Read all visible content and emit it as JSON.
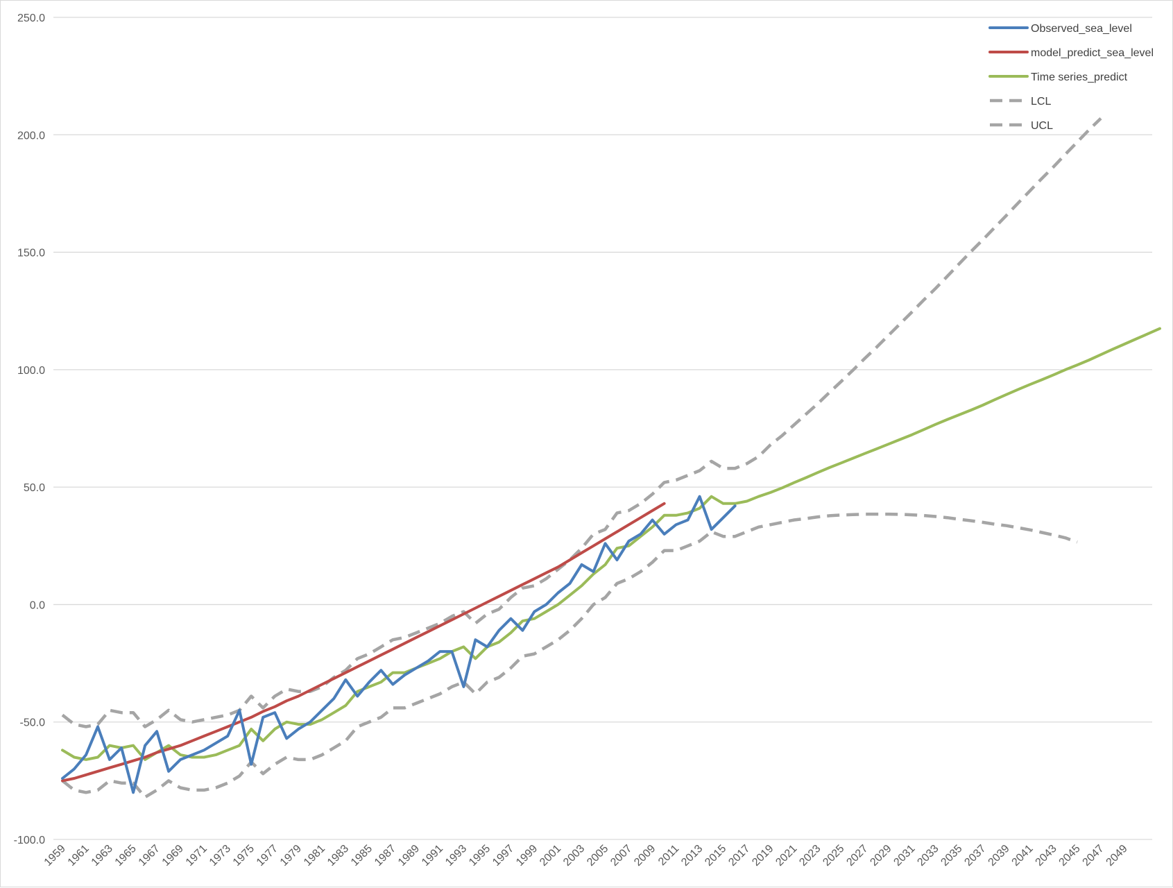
{
  "chart_data": {
    "type": "line",
    "title": "",
    "xlabel": "",
    "ylabel": "",
    "ylim": [
      -100,
      250
    ],
    "yticks": [
      "250.0",
      "200.0",
      "150.0",
      "100.0",
      "50.0",
      "0.0",
      "-50.0",
      "-100.0"
    ],
    "x_start": 1959,
    "x_end": 2051,
    "xtick_labels": [
      "1959",
      "1961",
      "1963",
      "1965",
      "1967",
      "1969",
      "1971",
      "1973",
      "1975",
      "1977",
      "1979",
      "1981",
      "1983",
      "1985",
      "1987",
      "1989",
      "1991",
      "1993",
      "1995",
      "1997",
      "1999",
      "2001",
      "2003",
      "2005",
      "2007",
      "2009",
      "2011",
      "2013",
      "2015",
      "2017",
      "2019",
      "2021",
      "2023",
      "2025",
      "2027",
      "2029",
      "2031",
      "2033",
      "2035",
      "2037",
      "2039",
      "2041",
      "2043",
      "2045",
      "2047",
      "2049"
    ],
    "grid": "horizontal",
    "legend_position": "top-right",
    "series": [
      {
        "name": "Observed_sea_level",
        "color": "#4a7ebb",
        "dashed": false,
        "start_year": 1959,
        "values": [
          -74,
          -70,
          -64,
          -52,
          -66,
          -61,
          -80,
          -60,
          -54,
          -71,
          -66,
          -64,
          -62,
          -59,
          -56,
          -45,
          -68,
          -48,
          -46,
          -57,
          -53,
          -50,
          -45,
          -40,
          -32,
          -39,
          -33,
          -28,
          -34,
          -30,
          -27,
          -24,
          -20,
          -20,
          -35,
          -15,
          -18,
          -11,
          -6,
          -11,
          -3,
          0,
          5,
          9,
          17,
          14,
          26,
          19,
          27,
          30,
          36,
          30,
          34,
          36,
          46,
          32,
          37,
          42
        ]
      },
      {
        "name": "model_predict_sea_level",
        "color": "#be4b48",
        "dashed": false,
        "start_year": 1959,
        "values": [
          -75,
          -74,
          -72.5,
          -71,
          -69.5,
          -68,
          -66.5,
          -65,
          -63,
          -61.5,
          -60,
          -58,
          -56,
          -54,
          -52,
          -50,
          -48,
          -45.5,
          -43.5,
          -41,
          -39,
          -36.5,
          -34,
          -31.5,
          -29,
          -26.5,
          -24,
          -21.5,
          -19,
          -16.5,
          -14,
          -11.5,
          -9,
          -6.5,
          -4,
          -1.5,
          1,
          3.5,
          6,
          8.5,
          11,
          13.5,
          16,
          19,
          22,
          25,
          28,
          31,
          34,
          37,
          40,
          43
        ]
      },
      {
        "name": "Time series_predict",
        "color": "#9bbb59",
        "dashed": false,
        "start_year": 1959,
        "values": [
          -62,
          -65,
          -66,
          -65,
          -60,
          -61,
          -60,
          -66,
          -63,
          -60,
          -64,
          -65,
          -65,
          -64,
          -62,
          -60,
          -53,
          -58,
          -53,
          -50,
          -51,
          -51,
          -49,
          -46,
          -43,
          -37,
          -35,
          -33,
          -29,
          -29,
          -27,
          -25,
          -23,
          -20,
          -18,
          -23,
          -18,
          -16,
          -12,
          -7,
          -6,
          -3,
          0,
          4,
          8,
          13,
          17,
          24,
          25,
          29,
          33,
          38,
          38,
          39,
          41,
          46,
          43,
          43,
          44,
          46,
          47.7,
          49.7,
          51.9,
          54,
          56.2,
          58.3,
          60.3,
          62.3,
          64.3,
          66.3,
          68.3,
          70.3,
          72.3,
          74.5,
          76.7,
          78.8,
          80.8,
          82.8,
          84.9,
          87.2,
          89.4,
          91.6,
          93.7,
          95.7,
          97.8,
          100,
          102,
          104.1,
          106.4,
          108.7,
          110.9,
          113.1,
          115.3,
          117.5
        ]
      },
      {
        "name": "LCL",
        "color": "#a5a5a5",
        "dashed": true,
        "start_year": 1959,
        "values": [
          -75,
          -79,
          -80,
          -79,
          -75,
          -76,
          -76,
          -82,
          -79,
          -75,
          -78,
          -79,
          -79,
          -78,
          -76,
          -73,
          -67,
          -72,
          -68,
          -65,
          -66,
          -66,
          -64,
          -61,
          -58,
          -52,
          -50,
          -48,
          -44,
          -44,
          -42,
          -40,
          -38,
          -35,
          -33,
          -38,
          -33,
          -31,
          -27,
          -22,
          -21,
          -18,
          -15,
          -11,
          -6,
          0,
          3,
          9,
          11,
          14,
          18,
          23,
          23,
          25,
          27,
          31,
          29,
          29,
          31,
          33,
          34,
          35,
          36,
          36.6,
          37.3,
          37.8,
          38.1,
          38.3,
          38.5,
          38.5,
          38.5,
          38.4,
          38.2,
          37.9,
          37.5,
          37,
          36.3,
          35.7,
          35,
          34.2,
          33.6,
          32.7,
          31.8,
          30.7,
          29.6,
          28.4,
          26.6
        ]
      },
      {
        "name": "UCL",
        "color": "#a5a5a5",
        "dashed": true,
        "start_year": 1959,
        "values": [
          -47,
          -51,
          -52,
          -51,
          -45,
          -46,
          -46,
          -52,
          -49,
          -45,
          -49,
          -50,
          -49,
          -48,
          -47,
          -45,
          -39,
          -44,
          -39,
          -36,
          -37,
          -37,
          -35,
          -31,
          -28,
          -23,
          -21,
          -18,
          -15,
          -14,
          -12,
          -10,
          -8,
          -5,
          -3,
          -8,
          -4,
          -2,
          3,
          7,
          8,
          11,
          15,
          19,
          24,
          30,
          32,
          39,
          40,
          43,
          47,
          52,
          53,
          55,
          57,
          61,
          58,
          58,
          60,
          63,
          68,
          72,
          76.5,
          81,
          85.5,
          90.3,
          95,
          99.8,
          104.8,
          109.6,
          114.6,
          119.6,
          124.6,
          129.7,
          134.6,
          139.8,
          145.1,
          150.3,
          155.3,
          160.5,
          165.7,
          171,
          176.2,
          181.4,
          186.4,
          191.7,
          196.9,
          202.1,
          207
        ]
      }
    ]
  }
}
